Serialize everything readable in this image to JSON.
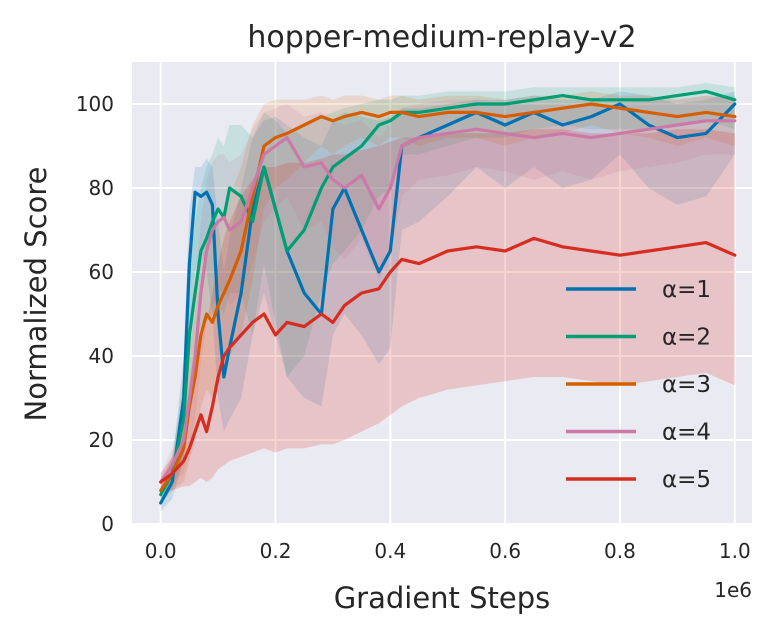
{
  "chart_data": {
    "type": "line",
    "title": "hopper-medium-replay-v2",
    "xlabel": "Gradient Steps",
    "ylabel": "Normalized Score",
    "x_scale_label": "1e6",
    "xlim": [
      -0.05,
      1.03
    ],
    "ylim": [
      0,
      110
    ],
    "xticks": [
      "0.0",
      "0.2",
      "0.4",
      "0.6",
      "0.8",
      "1.0"
    ],
    "xtick_values": [
      0.0,
      0.2,
      0.4,
      0.6,
      0.8,
      1.0
    ],
    "yticks": [
      "0",
      "20",
      "40",
      "60",
      "80",
      "100"
    ],
    "ytick_values": [
      0,
      20,
      40,
      60,
      80,
      100
    ],
    "grid": true,
    "background": "#EAEAF2",
    "legend_position": "lower-right",
    "x": [
      0.0,
      0.02,
      0.04,
      0.05,
      0.06,
      0.07,
      0.08,
      0.09,
      0.1,
      0.11,
      0.12,
      0.14,
      0.16,
      0.18,
      0.2,
      0.22,
      0.25,
      0.28,
      0.3,
      0.32,
      0.35,
      0.38,
      0.4,
      0.42,
      0.45,
      0.5,
      0.55,
      0.6,
      0.65,
      0.7,
      0.75,
      0.8,
      0.85,
      0.9,
      0.95,
      1.0
    ],
    "series": [
      {
        "name": "α=1",
        "color": "#0072B2",
        "values": [
          5,
          10,
          30,
          62,
          79,
          78,
          79,
          76,
          50,
          35,
          42,
          55,
          75,
          85,
          75,
          65,
          55,
          50,
          75,
          80,
          70,
          60,
          65,
          90,
          92,
          95,
          98,
          95,
          98,
          95,
          97,
          100,
          95,
          92,
          93,
          100
        ],
        "upper": [
          7,
          14,
          40,
          75,
          85,
          85,
          87,
          85,
          72,
          60,
          68,
          80,
          92,
          96,
          97,
          95,
          92,
          90,
          96,
          98,
          97,
          96,
          97,
          99,
          99,
          100,
          101,
          101,
          102,
          101,
          101,
          103,
          102,
          100,
          101,
          103
        ],
        "lower": [
          3,
          6,
          15,
          40,
          60,
          65,
          60,
          50,
          30,
          22,
          25,
          30,
          45,
          55,
          45,
          35,
          30,
          28,
          45,
          50,
          45,
          38,
          42,
          70,
          72,
          78,
          85,
          80,
          85,
          80,
          82,
          88,
          80,
          76,
          78,
          88
        ]
      },
      {
        "name": "α=2",
        "color": "#009E73",
        "values": [
          7,
          12,
          25,
          45,
          55,
          65,
          68,
          72,
          75,
          73,
          80,
          78,
          72,
          85,
          75,
          65,
          70,
          80,
          85,
          87,
          90,
          95,
          96,
          98,
          98,
          99,
          100,
          100,
          101,
          102,
          101,
          101,
          101,
          102,
          103,
          101
        ],
        "upper": [
          9,
          16,
          35,
          60,
          72,
          80,
          85,
          88,
          92,
          90,
          95,
          95,
          92,
          98,
          96,
          93,
          95,
          97,
          98,
          99,
          100,
          101,
          101,
          102,
          102,
          103,
          103,
          103,
          104,
          104,
          104,
          104,
          104,
          104,
          105,
          104
        ],
        "lower": [
          5,
          8,
          15,
          28,
          35,
          45,
          48,
          50,
          52,
          50,
          55,
          55,
          45,
          62,
          48,
          35,
          40,
          55,
          62,
          65,
          70,
          78,
          80,
          88,
          88,
          90,
          92,
          92,
          94,
          95,
          94,
          94,
          94,
          95,
          96,
          94
        ]
      },
      {
        "name": "α=3",
        "color": "#D55E00",
        "values": [
          8,
          12,
          18,
          28,
          35,
          45,
          50,
          48,
          52,
          55,
          58,
          65,
          78,
          90,
          92,
          93,
          95,
          97,
          96,
          97,
          98,
          97,
          98,
          98,
          97,
          98,
          98,
          97,
          98,
          99,
          100,
          99,
          98,
          97,
          98,
          97
        ],
        "upper": [
          10,
          16,
          28,
          42,
          50,
          62,
          68,
          68,
          72,
          75,
          78,
          85,
          95,
          100,
          101,
          101,
          101,
          102,
          101,
          102,
          102,
          101,
          102,
          102,
          101,
          102,
          102,
          101,
          102,
          102,
          103,
          102,
          102,
          101,
          102,
          101
        ],
        "lower": [
          6,
          8,
          10,
          15,
          20,
          28,
          32,
          30,
          33,
          36,
          40,
          45,
          58,
          75,
          80,
          82,
          86,
          90,
          88,
          90,
          92,
          90,
          92,
          92,
          90,
          92,
          92,
          90,
          92,
          93,
          95,
          93,
          92,
          90,
          92,
          90
        ]
      },
      {
        "name": "α=4",
        "color": "#CC79A7",
        "values": [
          10,
          14,
          20,
          30,
          40,
          55,
          65,
          70,
          72,
          73,
          70,
          72,
          80,
          88,
          90,
          92,
          85,
          86,
          82,
          80,
          83,
          75,
          80,
          90,
          92,
          93,
          94,
          93,
          92,
          93,
          92,
          93,
          94,
          95,
          96,
          96
        ],
        "upper": [
          12,
          18,
          30,
          45,
          58,
          72,
          82,
          86,
          88,
          88,
          86,
          88,
          94,
          98,
          99,
          100,
          97,
          98,
          96,
          95,
          96,
          92,
          95,
          99,
          100,
          101,
          101,
          100,
          100,
          100,
          100,
          100,
          101,
          101,
          102,
          102
        ],
        "lower": [
          8,
          10,
          12,
          18,
          25,
          38,
          48,
          52,
          55,
          56,
          52,
          55,
          62,
          72,
          75,
          78,
          70,
          72,
          66,
          63,
          68,
          58,
          64,
          78,
          82,
          83,
          85,
          84,
          82,
          84,
          82,
          84,
          85,
          86,
          88,
          88
        ]
      },
      {
        "name": "α=5",
        "color": "#D62D20",
        "values": [
          10,
          12,
          15,
          18,
          22,
          26,
          22,
          28,
          35,
          40,
          42,
          45,
          48,
          50,
          45,
          48,
          47,
          50,
          48,
          52,
          55,
          56,
          60,
          63,
          62,
          65,
          66,
          65,
          68,
          66,
          65,
          64,
          65,
          66,
          67,
          64
        ],
        "upper": [
          12,
          16,
          22,
          30,
          38,
          45,
          48,
          55,
          62,
          68,
          72,
          78,
          82,
          85,
          85,
          86,
          86,
          87,
          88,
          88,
          89,
          90,
          91,
          92,
          92,
          93,
          93,
          93,
          94,
          94,
          93,
          93,
          93,
          94,
          94,
          93
        ],
        "lower": [
          8,
          8,
          9,
          9,
          10,
          11,
          10,
          11,
          13,
          14,
          15,
          16,
          17,
          18,
          17,
          18,
          18,
          19,
          19,
          20,
          22,
          24,
          26,
          28,
          30,
          32,
          33,
          34,
          35,
          35,
          34,
          33,
          34,
          35,
          36,
          33
        ]
      }
    ]
  }
}
